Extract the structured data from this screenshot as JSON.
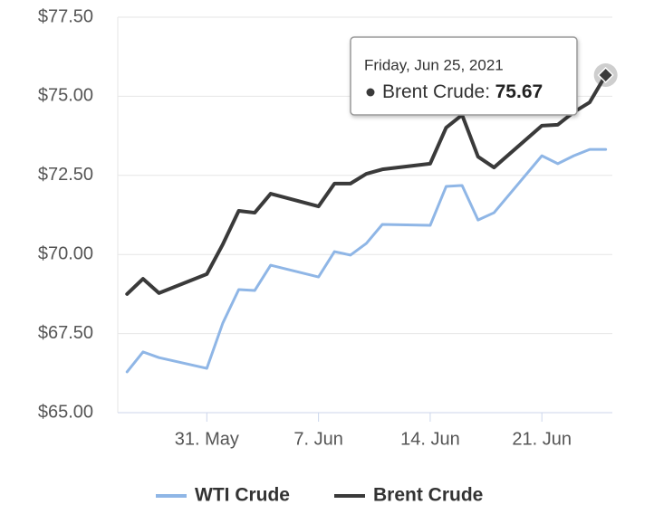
{
  "chart_data": {
    "type": "line",
    "x": [
      "2021-05-26",
      "2021-05-27",
      "2021-05-28",
      "2021-05-31",
      "2021-06-01",
      "2021-06-02",
      "2021-06-03",
      "2021-06-04",
      "2021-06-07",
      "2021-06-08",
      "2021-06-09",
      "2021-06-10",
      "2021-06-11",
      "2021-06-14",
      "2021-06-15",
      "2021-06-16",
      "2021-06-17",
      "2021-06-18",
      "2021-06-21",
      "2021-06-22",
      "2021-06-23",
      "2021-06-24",
      "2021-06-25"
    ],
    "series": [
      {
        "name": "WTI Crude",
        "color": "#8fb6e6",
        "values": [
          66.29,
          66.92,
          66.74,
          66.4,
          67.83,
          68.89,
          68.86,
          69.66,
          69.29,
          70.09,
          69.98,
          70.35,
          70.95,
          70.92,
          72.15,
          72.18,
          71.09,
          71.32,
          73.12,
          72.87,
          73.12,
          73.32,
          73.32
        ]
      },
      {
        "name": "Brent Crude",
        "color": "#3a3a3a",
        "values": [
          68.75,
          69.23,
          68.78,
          69.38,
          70.32,
          71.38,
          71.32,
          71.92,
          71.52,
          72.24,
          72.24,
          72.55,
          72.69,
          72.87,
          74.01,
          74.41,
          73.09,
          72.75,
          74.07,
          74.1,
          74.5,
          74.81,
          75.67
        ]
      }
    ],
    "xlim": [
      "2021-05-25T10:00:00Z",
      "2021-06-25T10:00:00Z"
    ],
    "xticks": [
      {
        "value": "2021-05-31",
        "label": "31. May"
      },
      {
        "value": "2021-06-07",
        "label": "7. Jun"
      },
      {
        "value": "2021-06-14",
        "label": "14. Jun"
      },
      {
        "value": "2021-06-21",
        "label": "21. Jun"
      }
    ],
    "ylim": [
      65,
      77.5
    ],
    "yticks": [
      {
        "value": 65,
        "label": "$65.00"
      },
      {
        "value": 67.5,
        "label": "$67.50"
      },
      {
        "value": 70,
        "label": "$70.00"
      },
      {
        "value": 72.5,
        "label": "$72.50"
      },
      {
        "value": 75,
        "label": "$75.00"
      },
      {
        "value": 77.5,
        "label": "$77.50"
      }
    ],
    "grid": true,
    "legend": "bottom",
    "tooltip": {
      "date": "Friday, Jun 25, 2021",
      "label": "Brent Crude:"
    }
  }
}
